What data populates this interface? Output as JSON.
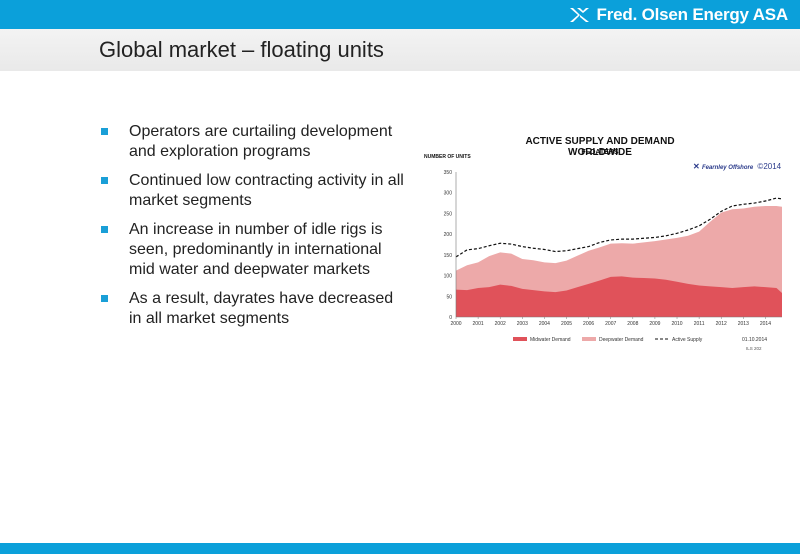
{
  "brand": {
    "name": "Fred. Olsen Energy ASA"
  },
  "slide": {
    "title": "Global market – floating units"
  },
  "bullets": [
    "Operators are curtailing development and exploration programs",
    "Continued low contracting activity in all market segments",
    "An increase in number of idle rigs is seen, predominantly in international mid water and deepwater markets",
    "As a result, dayrates have decreased in all market segments"
  ],
  "colors": {
    "accent": "#0BA0DA",
    "midwater": "#E0525A",
    "deepwater": "#EDA9A9",
    "supply": "#111111"
  },
  "chart_data": {
    "type": "area",
    "title": "ACTIVE SUPPLY AND DEMAND WORLDWIDE",
    "subtitle": "FLOATERS",
    "ylabel": "NUMBER OF UNITS",
    "source": "Fearnley Offshore",
    "source_year": "©2014",
    "date": "01.10.2014",
    "note": "ILS 202",
    "x_ticks": [
      "2000",
      "2001",
      "2002",
      "2003",
      "2004",
      "2005",
      "2006",
      "2007",
      "2008",
      "2009",
      "2010",
      "2011",
      "2012",
      "2013",
      "2014"
    ],
    "y_ticks": [
      0,
      50,
      100,
      150,
      200,
      250,
      300,
      350
    ],
    "xlim": [
      2000,
      2014.75
    ],
    "ylim": [
      0,
      350
    ],
    "x": [
      2000,
      2000.5,
      2001,
      2001.5,
      2002,
      2002.5,
      2003,
      2003.5,
      2004,
      2004.5,
      2005,
      2005.5,
      2006,
      2006.5,
      2007,
      2007.5,
      2008,
      2008.5,
      2009,
      2009.5,
      2010,
      2010.5,
      2011,
      2011.5,
      2012,
      2012.5,
      2013,
      2013.5,
      2014,
      2014.5,
      2014.75
    ],
    "series": [
      {
        "name": "Midwater Demand",
        "values": [
          66,
          65,
          70,
          72,
          78,
          75,
          68,
          65,
          62,
          60,
          64,
          72,
          80,
          88,
          97,
          98,
          95,
          94,
          93,
          90,
          85,
          80,
          76,
          74,
          72,
          70,
          72,
          74,
          72,
          70,
          58
        ]
      },
      {
        "name": "Deepwater Demand",
        "values": [
          46,
          60,
          62,
          75,
          78,
          78,
          72,
          72,
          70,
          70,
          72,
          76,
          80,
          80,
          80,
          80,
          82,
          86,
          90,
          97,
          106,
          116,
          130,
          156,
          180,
          190,
          190,
          192,
          196,
          198,
          208
        ]
      },
      {
        "name": "Active Supply",
        "values": [
          145,
          162,
          165,
          172,
          178,
          176,
          170,
          166,
          163,
          158,
          160,
          165,
          170,
          180,
          186,
          188,
          188,
          190,
          192,
          196,
          202,
          210,
          220,
          236,
          255,
          268,
          272,
          275,
          280,
          287,
          285
        ]
      }
    ],
    "legend_position": "bottom",
    "grid": false
  }
}
